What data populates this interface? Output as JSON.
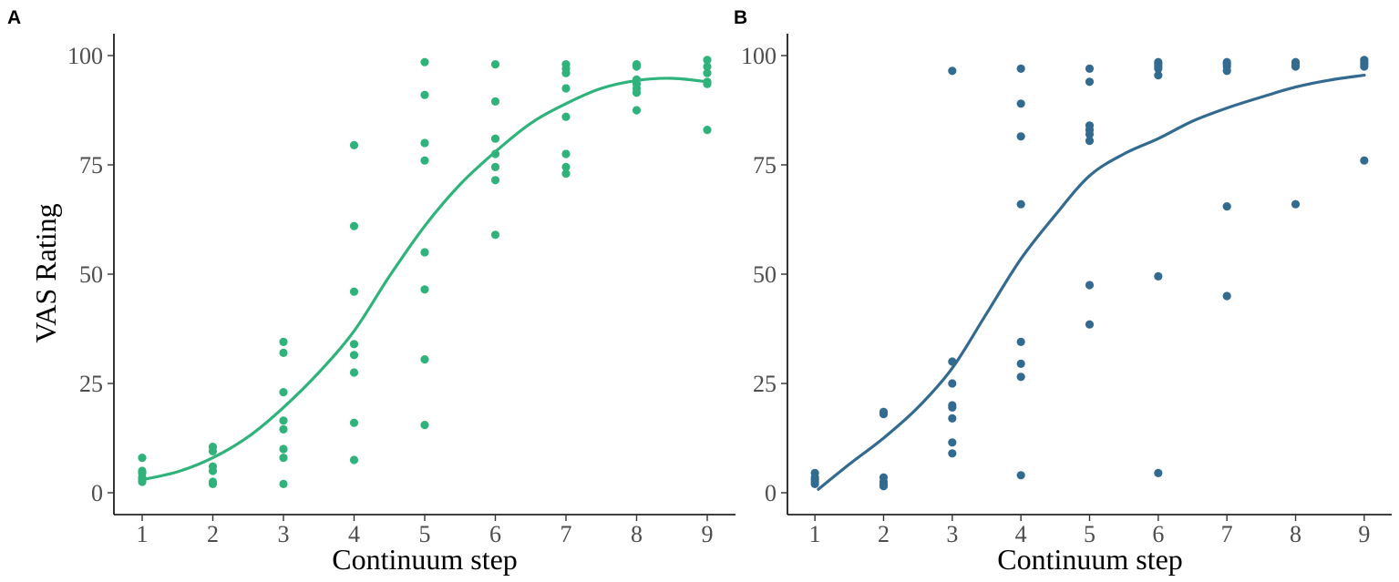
{
  "chart_data": [
    {
      "type": "scatter",
      "panel_label": "A",
      "xlabel": "Continuum step",
      "ylabel": "VAS Rating",
      "xlim": [
        0.6,
        9.4
      ],
      "ylim": [
        -5,
        105
      ],
      "xticks": [
        1,
        2,
        3,
        4,
        5,
        6,
        7,
        8,
        9
      ],
      "yticks": [
        0,
        25,
        50,
        75,
        100
      ],
      "grid": false,
      "color": "#2fb37a",
      "points": [
        [
          1,
          8
        ],
        [
          1,
          5
        ],
        [
          1,
          4.5
        ],
        [
          1,
          3.5
        ],
        [
          1,
          3
        ],
        [
          1,
          2.5
        ],
        [
          2,
          10.5
        ],
        [
          2,
          9.5
        ],
        [
          2,
          6
        ],
        [
          2,
          5
        ],
        [
          2,
          2.5
        ],
        [
          2,
          2
        ],
        [
          3,
          34.5
        ],
        [
          3,
          32
        ],
        [
          3,
          23
        ],
        [
          3,
          16.5
        ],
        [
          3,
          14.5
        ],
        [
          3,
          10
        ],
        [
          3,
          8
        ],
        [
          3,
          2
        ],
        [
          4,
          79.5
        ],
        [
          4,
          61
        ],
        [
          4,
          46
        ],
        [
          4,
          34
        ],
        [
          4,
          31.5
        ],
        [
          4,
          27.5
        ],
        [
          4,
          16
        ],
        [
          4,
          7.5
        ],
        [
          5,
          98.5
        ],
        [
          5,
          91
        ],
        [
          5,
          80
        ],
        [
          5,
          76
        ],
        [
          5,
          55
        ],
        [
          5,
          46.5
        ],
        [
          5,
          30.5
        ],
        [
          5,
          15.5
        ],
        [
          6,
          98
        ],
        [
          6,
          89.5
        ],
        [
          6,
          81
        ],
        [
          6,
          77.5
        ],
        [
          6,
          74.5
        ],
        [
          6,
          71.5
        ],
        [
          6,
          59
        ],
        [
          7,
          98
        ],
        [
          7,
          97
        ],
        [
          7,
          96
        ],
        [
          7,
          92.5
        ],
        [
          7,
          86
        ],
        [
          7,
          77.5
        ],
        [
          7,
          74.5
        ],
        [
          7,
          73
        ],
        [
          8,
          98
        ],
        [
          8,
          97.5
        ],
        [
          8,
          94.5
        ],
        [
          8,
          93.5
        ],
        [
          8,
          92.5
        ],
        [
          8,
          91.5
        ],
        [
          8,
          87.5
        ],
        [
          9,
          99
        ],
        [
          9,
          97.5
        ],
        [
          9,
          96
        ],
        [
          9,
          94
        ],
        [
          9,
          93.5
        ],
        [
          9,
          83
        ]
      ],
      "curve": [
        [
          1,
          3
        ],
        [
          1.5,
          4.8
        ],
        [
          2,
          8
        ],
        [
          2.5,
          12.8
        ],
        [
          3,
          19.5
        ],
        [
          3.5,
          27.5
        ],
        [
          4,
          37
        ],
        [
          4.5,
          49.5
        ],
        [
          5,
          61
        ],
        [
          5.5,
          70.5
        ],
        [
          6,
          78
        ],
        [
          6.5,
          84.5
        ],
        [
          7,
          89
        ],
        [
          7.5,
          92.5
        ],
        [
          8,
          94.3
        ],
        [
          8.5,
          94.8
        ],
        [
          9,
          94
        ]
      ]
    },
    {
      "type": "scatter",
      "panel_label": "B",
      "xlabel": "Continuum step",
      "ylabel": "",
      "xlim": [
        0.6,
        9.4
      ],
      "ylim": [
        -5,
        105
      ],
      "xticks": [
        1,
        2,
        3,
        4,
        5,
        6,
        7,
        8,
        9
      ],
      "yticks": [
        0,
        25,
        50,
        75,
        100
      ],
      "grid": false,
      "color": "#336a8f",
      "points": [
        [
          1,
          4.5
        ],
        [
          1,
          3.5
        ],
        [
          1,
          3
        ],
        [
          1,
          2.5
        ],
        [
          1,
          2
        ],
        [
          2,
          18.5
        ],
        [
          2,
          18
        ],
        [
          2,
          3.5
        ],
        [
          2,
          2.5
        ],
        [
          2,
          2
        ],
        [
          2,
          1.5
        ],
        [
          3,
          96.5
        ],
        [
          3,
          30
        ],
        [
          3,
          25
        ],
        [
          3,
          20
        ],
        [
          3,
          19.5
        ],
        [
          3,
          17
        ],
        [
          3,
          11.5
        ],
        [
          3,
          9
        ],
        [
          4,
          97
        ],
        [
          4,
          89
        ],
        [
          4,
          81.5
        ],
        [
          4,
          66
        ],
        [
          4,
          34.5
        ],
        [
          4,
          29.5
        ],
        [
          4,
          26.5
        ],
        [
          4,
          4
        ],
        [
          5,
          97
        ],
        [
          5,
          94
        ],
        [
          5,
          84
        ],
        [
          5,
          83
        ],
        [
          5,
          82
        ],
        [
          5,
          80.5
        ],
        [
          5,
          47.5
        ],
        [
          5,
          38.5
        ],
        [
          6,
          98.5
        ],
        [
          6,
          98
        ],
        [
          6,
          97.5
        ],
        [
          6,
          97
        ],
        [
          6,
          95.5
        ],
        [
          6,
          49.5
        ],
        [
          6,
          4.5
        ],
        [
          7,
          98.5
        ],
        [
          7,
          98
        ],
        [
          7,
          97.5
        ],
        [
          7,
          96.5
        ],
        [
          7,
          65.5
        ],
        [
          7,
          45
        ],
        [
          8,
          98.5
        ],
        [
          8,
          98
        ],
        [
          8,
          97.5
        ],
        [
          8,
          66
        ],
        [
          9,
          99
        ],
        [
          9,
          98.5
        ],
        [
          9,
          98
        ],
        [
          9,
          97.5
        ],
        [
          9,
          76
        ]
      ],
      "curve": [
        [
          1.05,
          0.8
        ],
        [
          1.5,
          6.5
        ],
        [
          2,
          12.5
        ],
        [
          2.5,
          19.5
        ],
        [
          3,
          28.5
        ],
        [
          3.5,
          41
        ],
        [
          4,
          53.5
        ],
        [
          4.5,
          63.5
        ],
        [
          5,
          72.5
        ],
        [
          5.5,
          77.5
        ],
        [
          6,
          81
        ],
        [
          6.5,
          85
        ],
        [
          7,
          88
        ],
        [
          7.5,
          90.5
        ],
        [
          8,
          92.8
        ],
        [
          8.5,
          94.4
        ],
        [
          9,
          95.5
        ]
      ]
    }
  ]
}
